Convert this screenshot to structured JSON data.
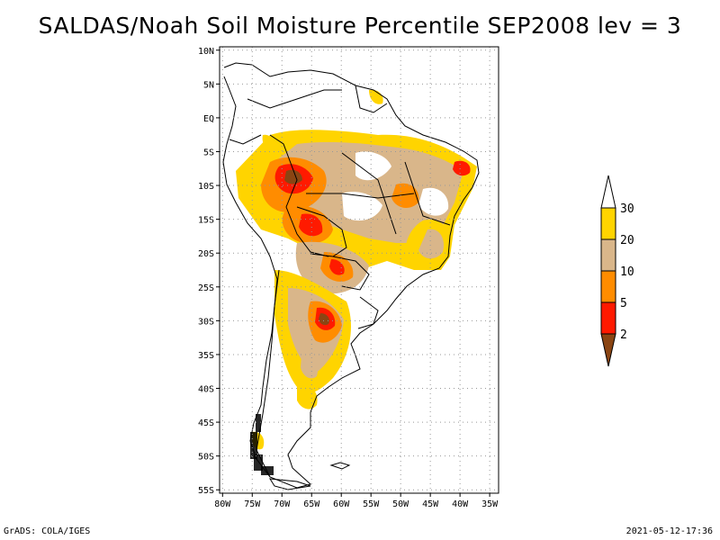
{
  "title": "SALDAS/Noah Soil Moisture Percentile SEP2008 lev = 3",
  "footer": {
    "left": "GrADS: COLA/IGES",
    "right": "2021-05-12-17:36"
  },
  "map": {
    "lat_labels": [
      "10N",
      "5N",
      "EQ",
      "5S",
      "10S",
      "15S",
      "20S",
      "25S",
      "30S",
      "35S",
      "40S",
      "45S",
      "50S",
      "55S"
    ],
    "lon_labels": [
      "80W",
      "75W",
      "70W",
      "65W",
      "60W",
      "55W",
      "50W",
      "45W",
      "40W",
      "35W"
    ],
    "lat_range": [
      10.5,
      -55.5
    ],
    "lon_range": [
      -80.5,
      -33.5
    ]
  },
  "colorbar": {
    "labels": [
      "30",
      "20",
      "10",
      "5",
      "2"
    ],
    "colors": {
      "above_30": "#ffffff",
      "c20_30": "#ffd400",
      "c10_20": "#d9b68a",
      "c5_10": "#ff8c00",
      "c2_5": "#ff1a00",
      "below_2": "#8b4513"
    }
  }
}
